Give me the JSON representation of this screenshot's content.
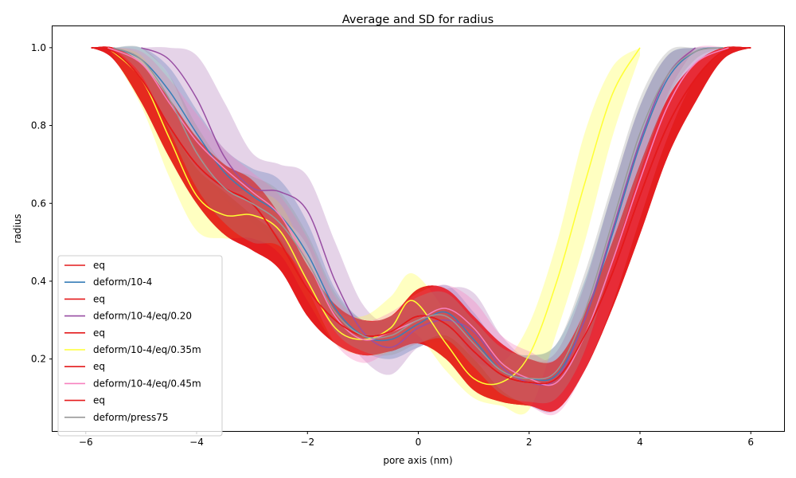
{
  "chart_data": {
    "type": "area",
    "title": "Average and SD for radius",
    "xlabel": "pore axis (nm)",
    "ylabel": "radius",
    "xlim": [
      -6.6,
      6.6
    ],
    "ylim": [
      0.015,
      1.055
    ],
    "xticks": [
      -6,
      -4,
      -2,
      0,
      2,
      4,
      6
    ],
    "yticks": [
      0.2,
      0.4,
      0.6,
      0.8,
      1.0
    ],
    "xtick_labels": [
      "−6",
      "−4",
      "−2",
      "0",
      "2",
      "4",
      "6"
    ],
    "ytick_labels": [
      "0.2",
      "0.4",
      "0.6",
      "0.8",
      "1.0"
    ],
    "grid": false,
    "legend_position": "lower-left",
    "series": [
      {
        "name": "eq",
        "color": "#e41a1c",
        "band_color": "#e41a1c",
        "band_opacity": 0.55,
        "x": [
          -5.9,
          -5.5,
          -5.0,
          -4.5,
          -4.0,
          -3.5,
          -3.0,
          -2.5,
          -2.0,
          -1.5,
          -1.0,
          -0.5,
          0.0,
          0.5,
          1.0,
          1.5,
          2.0,
          2.5,
          3.0,
          3.5,
          4.0,
          4.5,
          5.0,
          5.5,
          6.0
        ],
        "mean": [
          1.0,
          0.99,
          0.92,
          0.8,
          0.7,
          0.64,
          0.6,
          0.5,
          0.38,
          0.3,
          0.26,
          0.27,
          0.31,
          0.29,
          0.22,
          0.16,
          0.14,
          0.15,
          0.26,
          0.42,
          0.62,
          0.8,
          0.92,
          0.99,
          1.0
        ],
        "upper": [
          1.0,
          1.0,
          0.96,
          0.87,
          0.77,
          0.7,
          0.66,
          0.57,
          0.44,
          0.34,
          0.3,
          0.31,
          0.38,
          0.38,
          0.31,
          0.24,
          0.2,
          0.2,
          0.32,
          0.5,
          0.7,
          0.87,
          0.96,
          1.0,
          1.0
        ],
        "lower": [
          1.0,
          0.97,
          0.86,
          0.72,
          0.6,
          0.52,
          0.48,
          0.43,
          0.31,
          0.24,
          0.21,
          0.22,
          0.24,
          0.2,
          0.12,
          0.09,
          0.08,
          0.07,
          0.17,
          0.33,
          0.52,
          0.72,
          0.86,
          0.97,
          1.0
        ]
      },
      {
        "name": "deform/10-4",
        "color": "#377eb8",
        "band_color": "#377eb8",
        "band_opacity": 0.3,
        "x": [
          -5.5,
          -5.0,
          -4.5,
          -4.0,
          -3.5,
          -3.0,
          -2.5,
          -2.0,
          -1.5,
          -1.0,
          -0.5,
          0.0,
          0.5,
          1.0,
          1.5,
          2.0,
          2.5,
          3.0,
          3.5,
          4.0,
          4.5,
          5.0,
          5.5
        ],
        "mean": [
          1.0,
          0.97,
          0.89,
          0.78,
          0.68,
          0.62,
          0.57,
          0.47,
          0.33,
          0.26,
          0.25,
          0.29,
          0.32,
          0.25,
          0.17,
          0.15,
          0.16,
          0.3,
          0.52,
          0.75,
          0.92,
          0.99,
          1.0
        ],
        "upper": [
          1.0,
          1.0,
          0.95,
          0.84,
          0.74,
          0.69,
          0.66,
          0.55,
          0.38,
          0.3,
          0.3,
          0.35,
          0.39,
          0.32,
          0.23,
          0.21,
          0.24,
          0.4,
          0.63,
          0.85,
          0.98,
          1.0,
          1.0
        ],
        "lower": [
          1.0,
          0.93,
          0.82,
          0.71,
          0.61,
          0.55,
          0.49,
          0.4,
          0.28,
          0.22,
          0.2,
          0.23,
          0.25,
          0.18,
          0.11,
          0.08,
          0.07,
          0.2,
          0.41,
          0.65,
          0.85,
          0.96,
          1.0
        ]
      },
      {
        "name": "eq",
        "color": "#e41a1c",
        "band_color": "#e41a1c",
        "band_opacity": 0.55,
        "x": [
          -5.9,
          -5.5,
          -5.0,
          -4.5,
          -4.0,
          -3.5,
          -3.0,
          -2.5,
          -2.0,
          -1.5,
          -1.0,
          -0.5,
          0.0,
          0.5,
          1.0,
          1.5,
          2.0,
          2.5,
          3.0,
          3.5,
          4.0,
          4.5,
          5.0,
          5.5,
          6.0
        ],
        "mean": [
          1.0,
          0.99,
          0.92,
          0.8,
          0.7,
          0.64,
          0.6,
          0.5,
          0.38,
          0.3,
          0.26,
          0.27,
          0.31,
          0.29,
          0.22,
          0.16,
          0.14,
          0.15,
          0.26,
          0.42,
          0.62,
          0.8,
          0.92,
          0.99,
          1.0
        ],
        "upper": [
          1.0,
          1.0,
          0.96,
          0.87,
          0.77,
          0.7,
          0.66,
          0.57,
          0.44,
          0.34,
          0.3,
          0.31,
          0.38,
          0.38,
          0.31,
          0.24,
          0.2,
          0.2,
          0.32,
          0.5,
          0.7,
          0.87,
          0.96,
          1.0,
          1.0
        ],
        "lower": [
          1.0,
          0.97,
          0.86,
          0.72,
          0.6,
          0.52,
          0.48,
          0.43,
          0.31,
          0.24,
          0.21,
          0.22,
          0.24,
          0.2,
          0.12,
          0.09,
          0.08,
          0.07,
          0.17,
          0.33,
          0.52,
          0.72,
          0.86,
          0.97,
          1.0
        ]
      },
      {
        "name": "deform/10-4/eq/0.20",
        "color": "#984ea3",
        "band_color": "#984ea3",
        "band_opacity": 0.25,
        "x": [
          -5.0,
          -4.5,
          -4.0,
          -3.5,
          -3.0,
          -2.5,
          -2.0,
          -1.5,
          -1.0,
          -0.5,
          0.0,
          0.5,
          1.0,
          1.5,
          2.0,
          2.5,
          3.0,
          3.5,
          4.0,
          4.5,
          5.0
        ],
        "mean": [
          1.0,
          0.97,
          0.87,
          0.72,
          0.64,
          0.63,
          0.58,
          0.4,
          0.27,
          0.23,
          0.28,
          0.3,
          0.27,
          0.18,
          0.14,
          0.15,
          0.3,
          0.53,
          0.76,
          0.93,
          1.0
        ],
        "upper": [
          1.0,
          1.0,
          0.98,
          0.86,
          0.73,
          0.7,
          0.67,
          0.5,
          0.34,
          0.29,
          0.33,
          0.38,
          0.37,
          0.26,
          0.2,
          0.22,
          0.39,
          0.63,
          0.85,
          0.98,
          1.0
        ],
        "lower": [
          1.0,
          0.93,
          0.77,
          0.62,
          0.57,
          0.56,
          0.49,
          0.3,
          0.2,
          0.16,
          0.23,
          0.24,
          0.19,
          0.11,
          0.09,
          0.08,
          0.21,
          0.43,
          0.67,
          0.88,
          1.0
        ]
      },
      {
        "name": "eq",
        "color": "#e41a1c",
        "band_color": "#e41a1c",
        "band_opacity": 0.55,
        "x": [
          -5.9,
          -5.5,
          -5.0,
          -4.5,
          -4.0,
          -3.5,
          -3.0,
          -2.5,
          -2.0,
          -1.5,
          -1.0,
          -0.5,
          0.0,
          0.5,
          1.0,
          1.5,
          2.0,
          2.5,
          3.0,
          3.5,
          4.0,
          4.5,
          5.0,
          5.5,
          6.0
        ],
        "mean": [
          1.0,
          0.99,
          0.92,
          0.8,
          0.7,
          0.64,
          0.6,
          0.5,
          0.38,
          0.3,
          0.26,
          0.27,
          0.31,
          0.29,
          0.22,
          0.16,
          0.14,
          0.15,
          0.26,
          0.42,
          0.62,
          0.8,
          0.92,
          0.99,
          1.0
        ],
        "upper": [
          1.0,
          1.0,
          0.96,
          0.87,
          0.77,
          0.7,
          0.66,
          0.57,
          0.44,
          0.34,
          0.3,
          0.31,
          0.38,
          0.38,
          0.31,
          0.24,
          0.2,
          0.2,
          0.32,
          0.5,
          0.7,
          0.87,
          0.96,
          1.0,
          1.0
        ],
        "lower": [
          1.0,
          0.97,
          0.86,
          0.72,
          0.6,
          0.52,
          0.48,
          0.43,
          0.31,
          0.24,
          0.21,
          0.22,
          0.24,
          0.2,
          0.12,
          0.09,
          0.08,
          0.07,
          0.17,
          0.33,
          0.52,
          0.72,
          0.86,
          0.97,
          1.0
        ]
      },
      {
        "name": "deform/10-4/eq/0.35m",
        "color": "#ffff33",
        "band_color": "#ffff33",
        "band_opacity": 0.3,
        "x": [
          -5.6,
          -5.0,
          -4.5,
          -4.0,
          -3.5,
          -3.0,
          -2.5,
          -2.0,
          -1.5,
          -1.0,
          -0.5,
          -0.1,
          0.5,
          1.0,
          1.5,
          2.0,
          2.5,
          3.0,
          3.5,
          4.0
        ],
        "mean": [
          1.0,
          0.92,
          0.77,
          0.62,
          0.57,
          0.57,
          0.53,
          0.4,
          0.28,
          0.25,
          0.28,
          0.35,
          0.24,
          0.15,
          0.14,
          0.21,
          0.4,
          0.65,
          0.88,
          1.0
        ],
        "upper": [
          1.0,
          0.98,
          0.86,
          0.74,
          0.64,
          0.63,
          0.6,
          0.46,
          0.33,
          0.31,
          0.36,
          0.42,
          0.32,
          0.2,
          0.19,
          0.29,
          0.5,
          0.78,
          0.95,
          1.0
        ],
        "lower": [
          1.0,
          0.85,
          0.67,
          0.53,
          0.51,
          0.51,
          0.47,
          0.35,
          0.24,
          0.21,
          0.22,
          0.27,
          0.17,
          0.1,
          0.08,
          0.07,
          0.27,
          0.5,
          0.77,
          0.98
        ]
      },
      {
        "name": "eq",
        "color": "#e41a1c",
        "band_color": "#e41a1c",
        "band_opacity": 0.55,
        "x": [
          -5.9,
          -5.5,
          -5.0,
          -4.5,
          -4.0,
          -3.5,
          -3.0,
          -2.5,
          -2.0,
          -1.5,
          -1.0,
          -0.5,
          0.0,
          0.5,
          1.0,
          1.5,
          2.0,
          2.5,
          3.0,
          3.5,
          4.0,
          4.5,
          5.0,
          5.5,
          6.0
        ],
        "mean": [
          1.0,
          0.99,
          0.92,
          0.8,
          0.7,
          0.64,
          0.6,
          0.5,
          0.38,
          0.3,
          0.26,
          0.27,
          0.31,
          0.29,
          0.22,
          0.16,
          0.14,
          0.15,
          0.26,
          0.42,
          0.62,
          0.8,
          0.92,
          0.99,
          1.0
        ],
        "upper": [
          1.0,
          1.0,
          0.96,
          0.87,
          0.77,
          0.7,
          0.66,
          0.57,
          0.44,
          0.34,
          0.3,
          0.31,
          0.38,
          0.38,
          0.31,
          0.24,
          0.2,
          0.2,
          0.32,
          0.5,
          0.7,
          0.87,
          0.96,
          1.0,
          1.0
        ],
        "lower": [
          1.0,
          0.97,
          0.86,
          0.72,
          0.6,
          0.52,
          0.48,
          0.43,
          0.31,
          0.24,
          0.21,
          0.22,
          0.24,
          0.2,
          0.12,
          0.09,
          0.08,
          0.07,
          0.17,
          0.33,
          0.52,
          0.72,
          0.86,
          0.97,
          1.0
        ]
      },
      {
        "name": "deform/10-4/eq/0.45m",
        "color": "#f781bf",
        "band_color": "#f781bf",
        "band_opacity": 0.35,
        "x": [
          -5.6,
          -5.0,
          -4.5,
          -4.0,
          -3.5,
          -3.0,
          -2.5,
          -2.0,
          -1.5,
          -1.0,
          -0.5,
          0.0,
          0.5,
          1.0,
          1.5,
          2.0,
          2.5,
          3.0,
          3.5,
          4.0,
          4.5,
          5.0,
          5.6
        ],
        "mean": [
          1.0,
          0.96,
          0.86,
          0.76,
          0.69,
          0.63,
          0.57,
          0.45,
          0.31,
          0.25,
          0.27,
          0.3,
          0.33,
          0.28,
          0.19,
          0.15,
          0.14,
          0.26,
          0.45,
          0.66,
          0.85,
          0.96,
          1.0
        ],
        "upper": [
          1.0,
          0.99,
          0.92,
          0.83,
          0.74,
          0.68,
          0.62,
          0.51,
          0.36,
          0.3,
          0.32,
          0.37,
          0.39,
          0.35,
          0.26,
          0.22,
          0.2,
          0.33,
          0.54,
          0.76,
          0.93,
          1.0,
          1.0
        ],
        "lower": [
          1.0,
          0.92,
          0.8,
          0.69,
          0.63,
          0.57,
          0.51,
          0.38,
          0.24,
          0.19,
          0.22,
          0.24,
          0.26,
          0.2,
          0.12,
          0.08,
          0.06,
          0.17,
          0.34,
          0.56,
          0.77,
          0.92,
          1.0
        ]
      },
      {
        "name": "eq",
        "color": "#e41a1c",
        "band_color": "#e41a1c",
        "band_opacity": 0.55,
        "x": [
          -5.9,
          -5.5,
          -5.0,
          -4.5,
          -4.0,
          -3.5,
          -3.0,
          -2.5,
          -2.0,
          -1.5,
          -1.0,
          -0.5,
          0.0,
          0.5,
          1.0,
          1.5,
          2.0,
          2.5,
          3.0,
          3.5,
          4.0,
          4.5,
          5.0,
          5.5,
          6.0
        ],
        "mean": [
          1.0,
          0.99,
          0.92,
          0.8,
          0.7,
          0.64,
          0.6,
          0.5,
          0.38,
          0.3,
          0.26,
          0.27,
          0.31,
          0.29,
          0.22,
          0.16,
          0.14,
          0.15,
          0.26,
          0.42,
          0.62,
          0.8,
          0.92,
          0.99,
          1.0
        ],
        "upper": [
          1.0,
          1.0,
          0.96,
          0.87,
          0.77,
          0.7,
          0.66,
          0.57,
          0.44,
          0.34,
          0.3,
          0.31,
          0.38,
          0.38,
          0.31,
          0.24,
          0.2,
          0.2,
          0.32,
          0.5,
          0.7,
          0.87,
          0.96,
          1.0,
          1.0
        ],
        "lower": [
          1.0,
          0.97,
          0.86,
          0.72,
          0.6,
          0.52,
          0.48,
          0.43,
          0.31,
          0.24,
          0.21,
          0.22,
          0.24,
          0.2,
          0.12,
          0.09,
          0.08,
          0.07,
          0.17,
          0.33,
          0.52,
          0.72,
          0.86,
          0.97,
          1.0
        ]
      },
      {
        "name": "deform/press75",
        "color": "#999999",
        "band_color": "#999999",
        "band_opacity": 0.3,
        "x": [
          -5.5,
          -5.0,
          -4.5,
          -4.0,
          -3.5,
          -3.0,
          -2.5,
          -2.0,
          -1.5,
          -1.0,
          -0.5,
          0.0,
          0.5,
          1.0,
          1.5,
          2.0,
          2.5,
          3.0,
          3.5,
          4.0,
          4.5,
          5.0,
          5.5
        ],
        "mean": [
          1.0,
          0.97,
          0.87,
          0.73,
          0.64,
          0.6,
          0.55,
          0.45,
          0.32,
          0.26,
          0.26,
          0.3,
          0.31,
          0.24,
          0.17,
          0.15,
          0.17,
          0.32,
          0.55,
          0.78,
          0.93,
          0.99,
          1.0
        ],
        "upper": [
          1.0,
          1.0,
          0.93,
          0.8,
          0.7,
          0.67,
          0.63,
          0.52,
          0.37,
          0.3,
          0.31,
          0.36,
          0.37,
          0.3,
          0.23,
          0.21,
          0.24,
          0.42,
          0.65,
          0.87,
          0.99,
          1.0,
          1.0
        ],
        "lower": [
          1.0,
          0.93,
          0.79,
          0.64,
          0.55,
          0.5,
          0.49,
          0.4,
          0.27,
          0.22,
          0.21,
          0.24,
          0.25,
          0.18,
          0.11,
          0.09,
          0.1,
          0.22,
          0.45,
          0.68,
          0.87,
          0.97,
          1.0
        ]
      }
    ]
  }
}
